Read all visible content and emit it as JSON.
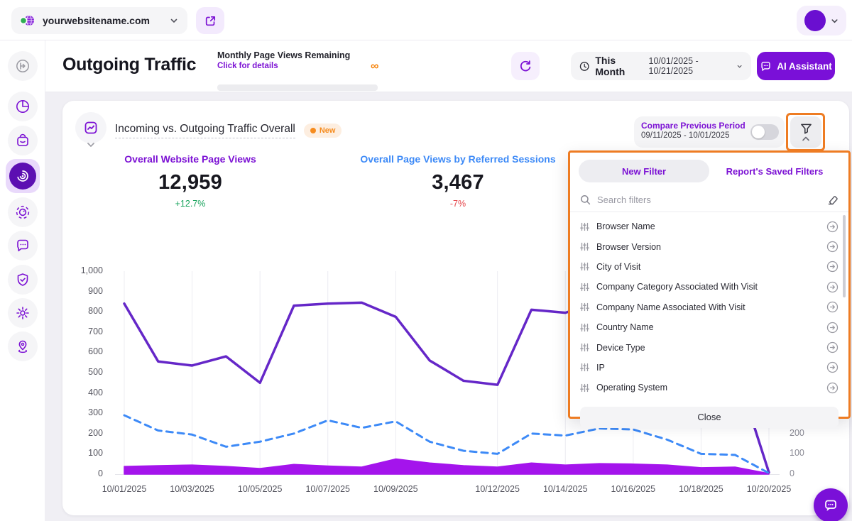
{
  "colors": {
    "brand_purple": "#7a10d8",
    "annotation_orange": "#ee7c23",
    "metric_purple": "#7c12d4",
    "metric_blue": "#3d8af7",
    "delta_green": "#18a35c",
    "delta_red": "#e5484d",
    "line_purple": "#6527c8",
    "line_blue": "#3d8af7",
    "area_purple": "#a414ec"
  },
  "topbar": {
    "website": "yourwebsitename.com",
    "icons": [
      "globe-icon",
      "chevron-down-icon",
      "external-link-icon",
      "avatar",
      "chevron-down-icon"
    ]
  },
  "sidebar": {
    "items": [
      "collapse-icon",
      "pie-chart-icon",
      "shopping-bag-icon",
      "radar-icon (active)",
      "focus-lens-icon",
      "chat-bubble-icon",
      "shield-check-icon",
      "gear-icon",
      "location-pin-icon"
    ]
  },
  "header": {
    "title": "Outgoing Traffic",
    "quota": {
      "label": "Monthly Page Views Remaining",
      "link": "Click for details",
      "value": "∞"
    },
    "period": {
      "label": "This Month",
      "range": "10/01/2025 - 10/21/2025"
    },
    "ai_button": "AI Assistant"
  },
  "card": {
    "title": "Incoming vs. Outgoing Traffic Overall",
    "badge": "New",
    "compare": {
      "label": "Compare Previous Period",
      "range": "09/11/2025 - 10/01/2025",
      "enabled": false
    },
    "metrics": [
      {
        "label": "Overall Website Page Views",
        "value": "12,959",
        "delta": "+12.7%"
      },
      {
        "label": "Overall Page Views by Referred Sessions",
        "value": "3,467",
        "delta": "-7%"
      }
    ]
  },
  "filter_panel": {
    "tabs": [
      "New Filter",
      "Report's Saved Filters"
    ],
    "active_tab": "New Filter",
    "search_placeholder": "Search filters",
    "items": [
      "Browser Name",
      "Browser Version",
      "City of Visit",
      "Company Category Associated With Visit",
      "Company Name Associated With Visit",
      "Country Name",
      "Device Type",
      "IP",
      "Operating System"
    ],
    "close_label": "Close"
  },
  "chart_data": {
    "type": "line",
    "x": [
      "10/01/2025",
      "10/02/2025",
      "10/03/2025",
      "10/04/2025",
      "10/05/2025",
      "10/06/2025",
      "10/07/2025",
      "10/08/2025",
      "10/09/2025",
      "10/10/2025",
      "10/11/2025",
      "10/12/2025",
      "10/13/2025",
      "10/14/2025",
      "10/15/2025",
      "10/16/2025",
      "10/17/2025",
      "10/18/2025",
      "10/19/2025",
      "10/20/2025"
    ],
    "x_ticks": [
      {
        "day": 0,
        "label": "10/01/2025"
      },
      {
        "day": 2,
        "label": "10/03/2025"
      },
      {
        "day": 4,
        "label": "10/05/2025"
      },
      {
        "day": 6,
        "label": "10/07/2025"
      },
      {
        "day": 8,
        "label": "10/09/2025"
      },
      {
        "day": 11,
        "label": "10/12/2025"
      },
      {
        "day": 13,
        "label": "10/14/2025"
      },
      {
        "day": 15,
        "label": "10/16/2025"
      },
      {
        "day": 17,
        "label": "10/18/2025"
      },
      {
        "day": 19,
        "label": "10/20/2025"
      }
    ],
    "ylim": [
      0,
      1000
    ],
    "y_ticks": [
      {
        "v": 0,
        "label": "0"
      },
      {
        "v": 100,
        "label": "100"
      },
      {
        "v": 200,
        "label": "200"
      },
      {
        "v": 300,
        "label": "300"
      },
      {
        "v": 400,
        "label": "400"
      },
      {
        "v": 500,
        "label": "500"
      },
      {
        "v": 600,
        "label": "600"
      },
      {
        "v": 700,
        "label": "700"
      },
      {
        "v": 800,
        "label": "800"
      },
      {
        "v": 900,
        "label": "900"
      },
      {
        "v": 1000,
        "label": "1,000"
      }
    ],
    "right_y_ticks": [
      {
        "v": 200,
        "label": "200"
      },
      {
        "v": 100,
        "label": "100"
      },
      {
        "v": 0,
        "label": "0"
      }
    ],
    "grid": "vertical",
    "legend": "none",
    "series": [
      {
        "name": "Overall Website Page Views",
        "type": "line",
        "style": "solid",
        "color": "#6527c8",
        "values": [
          840,
          555,
          535,
          580,
          450,
          830,
          840,
          845,
          775,
          560,
          460,
          440,
          810,
          795,
          850,
          855,
          810,
          700,
          530,
          8
        ]
      },
      {
        "name": "Overall Page Views by Referred Sessions",
        "type": "line",
        "style": "dashed",
        "color": "#3d8af7",
        "values": [
          290,
          215,
          195,
          135,
          160,
          200,
          265,
          228,
          260,
          160,
          115,
          100,
          200,
          190,
          225,
          220,
          170,
          100,
          95,
          5
        ]
      },
      {
        "name": "Outgoing Traffic",
        "type": "area",
        "color": "#a414ec",
        "values": [
          38,
          42,
          45,
          38,
          28,
          48,
          40,
          35,
          75,
          55,
          42,
          35,
          55,
          45,
          52,
          50,
          45,
          32,
          35,
          3
        ]
      }
    ]
  }
}
